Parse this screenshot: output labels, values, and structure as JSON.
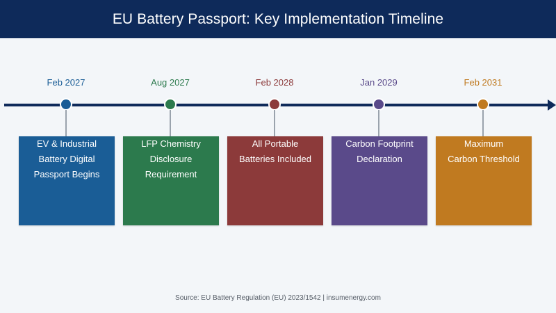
{
  "title": "EU Battery Passport: Key Implementation Timeline",
  "milestones": [
    {
      "date": "Feb 2027",
      "lines": [
        "EV & Industrial",
        "Battery Digital",
        "Passport Begins"
      ],
      "color": "#1a5d96"
    },
    {
      "date": "Aug 2027",
      "lines": [
        "LFP Chemistry",
        "Disclosure",
        "Requirement"
      ],
      "color": "#2c7a4d"
    },
    {
      "date": "Feb 2028",
      "lines": [
        "All Portable",
        "Batteries Included"
      ],
      "color": "#8c3a3a"
    },
    {
      "date": "Jan 2029",
      "lines": [
        "Carbon Footprint",
        "Declaration"
      ],
      "color": "#5a4a8a"
    },
    {
      "date": "Feb 2031",
      "lines": [
        "Maximum",
        "Carbon Threshold"
      ],
      "color": "#c07a20"
    }
  ],
  "source": "Source: EU Battery Regulation (EU) 2023/1542 | insumenergy.com",
  "colors": {
    "header_bg": "#0e2a5a",
    "axis": "#0e2a5a",
    "background": "#f3f6f9"
  }
}
